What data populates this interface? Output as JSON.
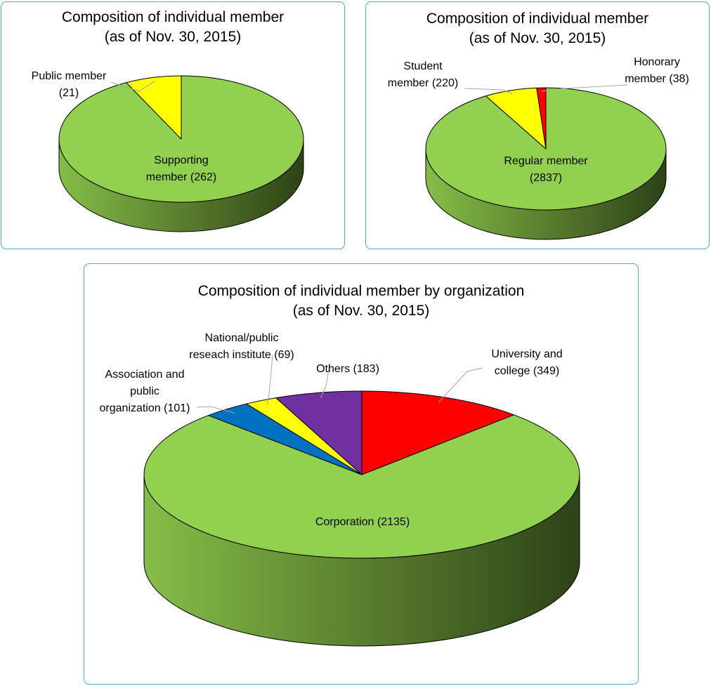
{
  "chart_data": [
    {
      "type": "pie",
      "title": "Composition of individual member",
      "subtitle": "(as of Nov. 30, 2015)",
      "slices": [
        {
          "label_lines": [
            "Supporting",
            "member (262)"
          ],
          "value": 262,
          "color": "#92d050"
        },
        {
          "label_lines": [
            "Public member",
            "(21)"
          ],
          "value": 21,
          "color": "#ffff00"
        }
      ]
    },
    {
      "type": "pie",
      "title": "Composition of individual member",
      "subtitle": "(as of Nov. 30, 2015)",
      "slices": [
        {
          "label_lines": [
            "Regular member",
            "(2837)"
          ],
          "value": 2837,
          "color": "#92d050"
        },
        {
          "label_lines": [
            "Student",
            "member (220)"
          ],
          "value": 220,
          "color": "#ffff00"
        },
        {
          "label_lines": [
            "Honorary",
            "member (38)"
          ],
          "value": 38,
          "color": "#ff0000"
        }
      ]
    },
    {
      "type": "pie",
      "title": "Composition of individual member by organization",
      "subtitle": "(as of Nov. 30, 2015)",
      "slices": [
        {
          "label_lines": [
            "University and",
            "college (349)"
          ],
          "value": 349,
          "color": "#ff0000"
        },
        {
          "label_lines": [
            "Corporation (2135)"
          ],
          "value": 2135,
          "color": "#92d050"
        },
        {
          "label_lines": [
            "Association and",
            "public",
            "organization (101)"
          ],
          "value": 101,
          "color": "#0070c0"
        },
        {
          "label_lines": [
            "National/public",
            "reseach institute (69)"
          ],
          "value": 69,
          "color": "#ffff00"
        },
        {
          "label_lines": [
            "Others (183)"
          ],
          "value": 183,
          "color": "#7030a0"
        }
      ]
    }
  ]
}
